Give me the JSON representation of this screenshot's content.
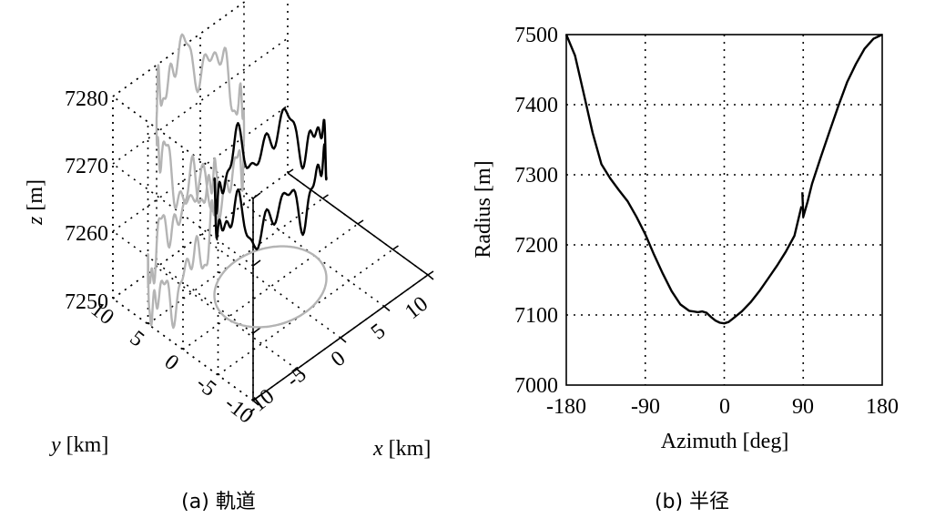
{
  "chart_data": [
    {
      "type": "line",
      "projection": "3d",
      "caption": "(a) 軌道",
      "xlabel_var": "x",
      "xlabel_unit": "[km]",
      "ylabel_var": "y",
      "ylabel_unit": "[km]",
      "zlabel_var": "z",
      "zlabel_unit": "[m]",
      "xlim": [
        -10,
        10
      ],
      "ylim": [
        -10,
        10
      ],
      "zlim": [
        7250,
        7280
      ],
      "x_ticks": [
        "-10",
        "-5",
        "0",
        "5",
        "10"
      ],
      "y_ticks": [
        "-10",
        "-5",
        "0",
        "5",
        "10"
      ],
      "z_ticks": [
        "7250",
        "7260",
        "7270",
        "7280"
      ],
      "grid": true,
      "series": [
        {
          "role": "trajectory",
          "color": "#000000"
        },
        {
          "role": "projection-xz-wall",
          "color": "#b4b4b4"
        },
        {
          "role": "projection-yz-wall",
          "color": "#b4b4b4"
        },
        {
          "role": "projection-xy-floor",
          "color": "#b4b4b4"
        }
      ]
    },
    {
      "type": "line",
      "caption": "(b) 半径",
      "xlabel": "Azimuth [deg]",
      "ylabel": "Radius [m]",
      "xlim": [
        -180,
        180
      ],
      "ylim": [
        7000,
        7500
      ],
      "x_ticks": [
        "-180",
        "-90",
        "0",
        "90",
        "180"
      ],
      "y_ticks": [
        "7000",
        "7100",
        "7200",
        "7300",
        "7400",
        "7500"
      ],
      "grid": true,
      "series": [
        {
          "color": "#000000",
          "x": [
            -180,
            -170,
            -160,
            -150,
            -140,
            -130,
            -120,
            -110,
            -100,
            -90,
            -80,
            -70,
            -60,
            -50,
            -40,
            -30,
            -25,
            -20,
            -15,
            -10,
            -5,
            0,
            5,
            10,
            20,
            30,
            40,
            50,
            60,
            70,
            80,
            88
          ],
          "y": [
            7500,
            7470,
            7415,
            7360,
            7315,
            7295,
            7278,
            7262,
            7240,
            7215,
            7186,
            7159,
            7134,
            7115,
            7106,
            7104,
            7105,
            7103,
            7097,
            7092,
            7089,
            7088,
            7090,
            7095,
            7105,
            7118,
            7134,
            7152,
            7170,
            7190,
            7213,
            7255
          ]
        },
        {
          "color": "#000000",
          "x": [
            89,
            90,
            95,
            100,
            110,
            120,
            130,
            140,
            150,
            160,
            170,
            180
          ],
          "y": [
            7275,
            7240,
            7262,
            7287,
            7325,
            7362,
            7398,
            7432,
            7458,
            7480,
            7494,
            7500
          ]
        }
      ]
    }
  ]
}
